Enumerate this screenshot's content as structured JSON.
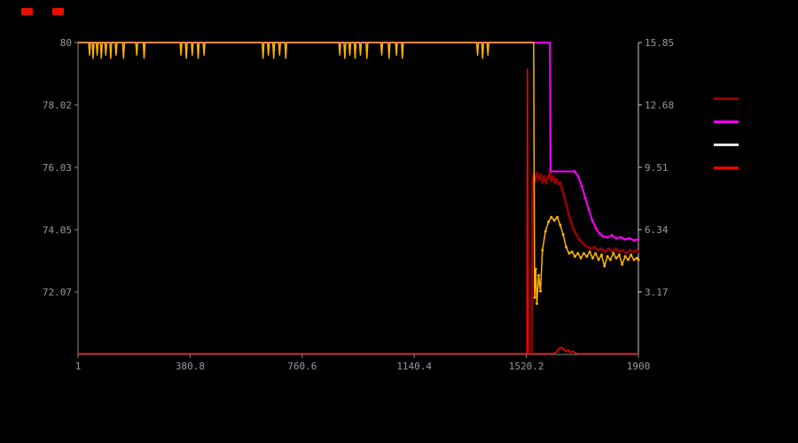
{
  "window": {
    "background": "#000000"
  },
  "indicators": [
    {
      "name": "indicator-led-1",
      "color": "#e61000"
    },
    {
      "name": "indicator-led-2",
      "color": "#e61000"
    }
  ],
  "chart_data": {
    "type": "line",
    "title": "",
    "grid": false,
    "axis_color": "#8a8a8a",
    "axis_color_right": "#c8c8c8",
    "label_color": "#9a9a9a",
    "x_axis": {
      "range": [
        1,
        1900
      ],
      "ticks": [
        {
          "v": 1,
          "label": "1"
        },
        {
          "v": 380.8,
          "label": "380.8"
        },
        {
          "v": 760.6,
          "label": "760.6"
        },
        {
          "v": 1140.4,
          "label": "1140.4"
        },
        {
          "v": 1520.2,
          "label": "1520.2"
        },
        {
          "v": 1900,
          "label": "1900"
        }
      ]
    },
    "y_left": {
      "range": [
        70.09,
        80
      ],
      "ticks": [
        {
          "v": 80,
          "label": "80"
        },
        {
          "v": 78.02,
          "label": "78.02"
        },
        {
          "v": 76.03,
          "label": "76.03"
        },
        {
          "v": 74.05,
          "label": "74.05"
        },
        {
          "v": 72.07,
          "label": "72.07"
        }
      ]
    },
    "y_right": {
      "range": [
        0,
        15.85
      ],
      "ticks": [
        {
          "v": 15.85,
          "label": "15.85"
        },
        {
          "v": 12.68,
          "label": "12.68"
        },
        {
          "v": 9.51,
          "label": "9.51"
        },
        {
          "v": 6.34,
          "label": "6.34"
        },
        {
          "v": 3.17,
          "label": "3.17"
        }
      ]
    },
    "legend": {
      "position": "right",
      "entries": [
        {
          "swatch": "#990000"
        },
        {
          "swatch": "#ff00ff"
        },
        {
          "swatch": "#e8e8e8"
        },
        {
          "swatch": "#ff0000"
        }
      ]
    },
    "series": [
      {
        "name": "dark-red-series",
        "color": "#990000",
        "axis": "left",
        "width": 2.5,
        "dot_from": 1545,
        "points": [
          [
            1538,
            70.15
          ],
          [
            1541,
            75.6
          ],
          [
            1545,
            75.8
          ],
          [
            1551,
            75.6
          ],
          [
            1557,
            75.85
          ],
          [
            1563,
            75.65
          ],
          [
            1569,
            75.8
          ],
          [
            1575,
            75.55
          ],
          [
            1581,
            75.75
          ],
          [
            1587,
            75.55
          ],
          [
            1593,
            75.7
          ],
          [
            1599,
            75.85
          ],
          [
            1605,
            75.6
          ],
          [
            1611,
            75.75
          ],
          [
            1617,
            75.55
          ],
          [
            1623,
            75.65
          ],
          [
            1629,
            75.5
          ],
          [
            1635,
            75.55
          ],
          [
            1641,
            75.35
          ],
          [
            1649,
            75.1
          ],
          [
            1657,
            74.8
          ],
          [
            1665,
            74.5
          ],
          [
            1673,
            74.25
          ],
          [
            1681,
            74.05
          ],
          [
            1689,
            73.9
          ],
          [
            1699,
            73.75
          ],
          [
            1709,
            73.65
          ],
          [
            1719,
            73.55
          ],
          [
            1729,
            73.5
          ],
          [
            1739,
            73.45
          ],
          [
            1751,
            73.5
          ],
          [
            1763,
            73.4
          ],
          [
            1775,
            73.45
          ],
          [
            1787,
            73.35
          ],
          [
            1799,
            73.45
          ],
          [
            1811,
            73.35
          ],
          [
            1823,
            73.45
          ],
          [
            1835,
            73.35
          ],
          [
            1847,
            73.4
          ],
          [
            1859,
            73.3
          ],
          [
            1871,
            73.4
          ],
          [
            1883,
            73.35
          ],
          [
            1895,
            73.4
          ],
          [
            1900,
            73.35
          ]
        ]
      },
      {
        "name": "magenta-series",
        "color": "#ff00ff",
        "axis": "right",
        "width": 2,
        "dot_from": 1684,
        "points": [
          [
            1,
            15.85
          ],
          [
            1600,
            15.85
          ],
          [
            1602,
            9.3
          ],
          [
            1684,
            9.3
          ],
          [
            1696,
            9.05
          ],
          [
            1708,
            8.55
          ],
          [
            1720,
            7.95
          ],
          [
            1732,
            7.35
          ],
          [
            1744,
            6.8
          ],
          [
            1756,
            6.4
          ],
          [
            1768,
            6.15
          ],
          [
            1780,
            6.0
          ],
          [
            1795,
            5.95
          ],
          [
            1810,
            6.05
          ],
          [
            1825,
            5.9
          ],
          [
            1840,
            5.95
          ],
          [
            1855,
            5.85
          ],
          [
            1870,
            5.9
          ],
          [
            1885,
            5.8
          ],
          [
            1900,
            5.85
          ]
        ]
      },
      {
        "name": "yellow-series",
        "color": "#ffb400",
        "axis": "left",
        "width": 1.5,
        "dot_from": 1548,
        "points": [
          [
            1,
            80
          ],
          [
            37,
            80
          ],
          [
            40,
            79.6
          ],
          [
            43,
            80
          ],
          [
            49,
            80
          ],
          [
            52,
            79.5
          ],
          [
            55,
            80
          ],
          [
            63,
            80
          ],
          [
            66,
            79.6
          ],
          [
            69,
            80
          ],
          [
            77,
            80
          ],
          [
            80,
            79.5
          ],
          [
            83,
            80
          ],
          [
            92,
            80
          ],
          [
            95,
            79.6
          ],
          [
            98,
            80
          ],
          [
            109,
            80
          ],
          [
            112,
            79.5
          ],
          [
            115,
            80
          ],
          [
            127,
            80
          ],
          [
            130,
            79.6
          ],
          [
            133,
            80
          ],
          [
            152,
            80
          ],
          [
            155,
            79.5
          ],
          [
            158,
            80
          ],
          [
            197,
            80
          ],
          [
            200,
            79.6
          ],
          [
            203,
            80
          ],
          [
            222,
            80
          ],
          [
            225,
            79.5
          ],
          [
            228,
            80
          ],
          [
            347,
            80
          ],
          [
            350,
            79.6
          ],
          [
            353,
            80
          ],
          [
            365,
            80
          ],
          [
            368,
            79.5
          ],
          [
            371,
            80
          ],
          [
            385,
            80
          ],
          [
            388,
            79.6
          ],
          [
            391,
            80
          ],
          [
            405,
            80
          ],
          [
            408,
            79.5
          ],
          [
            411,
            80
          ],
          [
            425,
            80
          ],
          [
            428,
            79.6
          ],
          [
            431,
            80
          ],
          [
            625,
            80
          ],
          [
            628,
            79.5
          ],
          [
            631,
            80
          ],
          [
            643,
            80
          ],
          [
            646,
            79.6
          ],
          [
            649,
            80
          ],
          [
            661,
            80
          ],
          [
            664,
            79.5
          ],
          [
            667,
            80
          ],
          [
            681,
            80
          ],
          [
            684,
            79.6
          ],
          [
            687,
            80
          ],
          [
            702,
            80
          ],
          [
            705,
            79.5
          ],
          [
            708,
            80
          ],
          [
            885,
            80
          ],
          [
            888,
            79.6
          ],
          [
            891,
            80
          ],
          [
            902,
            80
          ],
          [
            905,
            79.5
          ],
          [
            908,
            80
          ],
          [
            919,
            80
          ],
          [
            922,
            79.6
          ],
          [
            925,
            80
          ],
          [
            937,
            80
          ],
          [
            940,
            79.5
          ],
          [
            943,
            80
          ],
          [
            955,
            80
          ],
          [
            958,
            79.6
          ],
          [
            961,
            80
          ],
          [
            977,
            80
          ],
          [
            980,
            79.5
          ],
          [
            983,
            80
          ],
          [
            1027,
            80
          ],
          [
            1030,
            79.6
          ],
          [
            1033,
            80
          ],
          [
            1052,
            80
          ],
          [
            1055,
            79.5
          ],
          [
            1058,
            80
          ],
          [
            1077,
            80
          ],
          [
            1080,
            79.6
          ],
          [
            1083,
            80
          ],
          [
            1097,
            80
          ],
          [
            1100,
            79.5
          ],
          [
            1103,
            80
          ],
          [
            1352,
            80
          ],
          [
            1355,
            79.6
          ],
          [
            1358,
            80
          ],
          [
            1369,
            80
          ],
          [
            1372,
            79.5
          ],
          [
            1375,
            80
          ],
          [
            1387,
            80
          ],
          [
            1390,
            79.6
          ],
          [
            1393,
            80
          ],
          [
            1545,
            80
          ],
          [
            1548,
            71.9
          ],
          [
            1552,
            72.8
          ],
          [
            1556,
            71.7
          ],
          [
            1562,
            72.6
          ],
          [
            1568,
            72.1
          ],
          [
            1575,
            73.4
          ],
          [
            1585,
            74.0
          ],
          [
            1595,
            74.3
          ],
          [
            1605,
            74.45
          ],
          [
            1615,
            74.35
          ],
          [
            1625,
            74.45
          ],
          [
            1635,
            74.2
          ],
          [
            1645,
            73.9
          ],
          [
            1655,
            73.5
          ],
          [
            1665,
            73.3
          ],
          [
            1675,
            73.35
          ],
          [
            1685,
            73.2
          ],
          [
            1695,
            73.3
          ],
          [
            1705,
            73.15
          ],
          [
            1715,
            73.3
          ],
          [
            1725,
            73.2
          ],
          [
            1735,
            73.35
          ],
          [
            1745,
            73.15
          ],
          [
            1755,
            73.3
          ],
          [
            1765,
            73.1
          ],
          [
            1775,
            73.25
          ],
          [
            1785,
            72.9
          ],
          [
            1795,
            73.2
          ],
          [
            1805,
            73.1
          ],
          [
            1815,
            73.3
          ],
          [
            1825,
            73.15
          ],
          [
            1835,
            73.25
          ],
          [
            1845,
            72.95
          ],
          [
            1855,
            73.2
          ],
          [
            1865,
            73.1
          ],
          [
            1875,
            73.25
          ],
          [
            1885,
            73.1
          ],
          [
            1895,
            73.15
          ],
          [
            1900,
            73.1
          ]
        ]
      },
      {
        "name": "red-series",
        "color": "#ff0000",
        "axis": "right",
        "width": 1.5,
        "dot_from": null,
        "points": [
          [
            1,
            0.04
          ],
          [
            1522,
            0.04
          ],
          [
            1524,
            14.5
          ],
          [
            1527,
            0.04
          ],
          [
            1612,
            0.04
          ],
          [
            1622,
            0.12
          ],
          [
            1630,
            0.28
          ],
          [
            1638,
            0.35
          ],
          [
            1646,
            0.28
          ],
          [
            1654,
            0.15
          ],
          [
            1662,
            0.22
          ],
          [
            1670,
            0.1
          ],
          [
            1678,
            0.16
          ],
          [
            1688,
            0.06
          ],
          [
            1700,
            0.04
          ],
          [
            1900,
            0.04
          ]
        ]
      }
    ]
  }
}
